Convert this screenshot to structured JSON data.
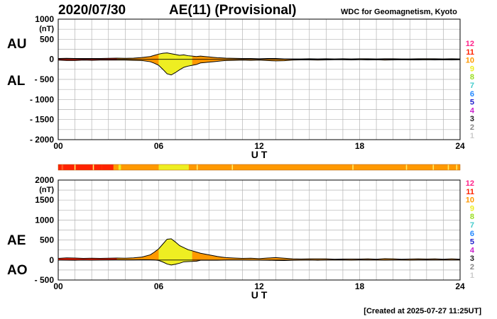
{
  "header": {
    "date": "2020/07/30",
    "title": "AE(11) (Provisional)",
    "source": "WDC for Geomagnetism, Kyoto"
  },
  "footer": {
    "created": "[Created at 2025-07-27 11:25UT]"
  },
  "scale_labels": [
    "12",
    "11",
    "10",
    "9",
    "8",
    "7",
    "6",
    "5",
    "4",
    "3",
    "2",
    "1"
  ],
  "scale_colors": [
    "#ff2288",
    "#ff2200",
    "#ff9900",
    "#eeee22",
    "#99dd22",
    "#44cccc",
    "#2288ff",
    "#2222cc",
    "#cc22cc",
    "#222222",
    "#888888",
    "#cccccc"
  ],
  "color_bar": {
    "segments": [
      {
        "from": 0.0,
        "to": 0.2,
        "color": "#ff2200"
      },
      {
        "from": 0.2,
        "to": 0.3,
        "color": "#ff5522"
      },
      {
        "from": 0.3,
        "to": 2.6,
        "color": "#ff2200"
      },
      {
        "from": 2.6,
        "to": 3.3,
        "color": "#ff2200"
      },
      {
        "from": 3.3,
        "to": 3.6,
        "color": "#ff9900"
      },
      {
        "from": 3.6,
        "to": 3.75,
        "color": "#eeee22"
      },
      {
        "from": 3.75,
        "to": 6.0,
        "color": "#ff9900"
      },
      {
        "from": 6.0,
        "to": 7.8,
        "color": "#eeee22"
      },
      {
        "from": 7.8,
        "to": 24.0,
        "color": "#ff9900"
      }
    ],
    "ticks": [
      1.0,
      2.1,
      8.3,
      10.4,
      17.6,
      20.8,
      22.4,
      23.3,
      23.8
    ]
  },
  "chart_data": [
    {
      "type": "area",
      "panel": "upper",
      "xlabel": "U T",
      "ylabel_unit": "(nT)",
      "side_labels": [
        "AU",
        "AL"
      ],
      "xlim": [
        0,
        24
      ],
      "ylim": [
        -2000,
        1000
      ],
      "x_ticks": [
        "00",
        "06",
        "12",
        "18",
        "24"
      ],
      "x_tick_values": [
        0,
        6,
        12,
        18,
        24
      ],
      "y_ticks": [
        "1000",
        "500",
        "0",
        "- 500",
        "- 1000",
        "- 1500",
        "- 2000"
      ],
      "y_tick_values": [
        1000,
        500,
        0,
        -500,
        -1000,
        -1500,
        -2000
      ],
      "grid": true,
      "x": [
        0,
        0.5,
        1,
        1.5,
        2,
        2.5,
        3,
        3.5,
        4,
        4.5,
        5,
        5.5,
        5.75,
        6,
        6.25,
        6.5,
        6.75,
        7,
        7.25,
        7.5,
        7.75,
        8,
        8.25,
        8.5,
        8.75,
        9,
        9.25,
        9.5,
        9.75,
        10,
        10.5,
        11,
        11.5,
        12,
        12.5,
        13,
        13.5,
        14,
        14.5,
        15,
        15.5,
        16,
        16.5,
        17,
        17.5,
        18,
        18.5,
        19,
        19.5,
        20,
        20.5,
        21,
        21.5,
        22,
        22.5,
        23,
        23.5,
        24
      ],
      "series": [
        {
          "name": "AU",
          "values": [
            20,
            25,
            20,
            20,
            20,
            20,
            25,
            30,
            25,
            30,
            45,
            70,
            100,
            130,
            150,
            160,
            140,
            120,
            100,
            110,
            90,
            80,
            70,
            80,
            70,
            60,
            50,
            40,
            35,
            30,
            25,
            20,
            20,
            15,
            20,
            20,
            10,
            10,
            10,
            15,
            10,
            15,
            10,
            15,
            10,
            15,
            15,
            10,
            15,
            15,
            10,
            10,
            15,
            15,
            15,
            10,
            15,
            10
          ]
        },
        {
          "name": "AL",
          "values": [
            -20,
            -30,
            -30,
            -20,
            -25,
            -20,
            -20,
            -20,
            -20,
            -25,
            -30,
            -60,
            -100,
            -150,
            -250,
            -360,
            -390,
            -330,
            -260,
            -200,
            -170,
            -150,
            -130,
            -90,
            -80,
            -70,
            -60,
            -50,
            -40,
            -30,
            -25,
            -20,
            -25,
            -20,
            -30,
            -40,
            -35,
            -20,
            -15,
            -15,
            -20,
            -15,
            -10,
            -10,
            -15,
            -10,
            -15,
            -10,
            -20,
            -15,
            -10,
            -15,
            -15,
            -10,
            -15,
            -10,
            -15,
            -10
          ]
        }
      ]
    },
    {
      "type": "area",
      "panel": "lower",
      "xlabel": "U T",
      "ylabel_unit": "(nT)",
      "side_labels": [
        "AE",
        "AO"
      ],
      "xlim": [
        0,
        24
      ],
      "ylim": [
        -500,
        2000
      ],
      "x_ticks": [
        "00",
        "06",
        "12",
        "18",
        "24"
      ],
      "x_tick_values": [
        0,
        6,
        12,
        18,
        24
      ],
      "y_ticks": [
        "2000",
        "1500",
        "1000",
        "500",
        "0",
        "- 500"
      ],
      "y_tick_values": [
        2000,
        1500,
        1000,
        500,
        0,
        -500
      ],
      "grid": true,
      "x": [
        0,
        0.5,
        1,
        1.5,
        2,
        2.5,
        3,
        3.5,
        4,
        4.5,
        5,
        5.5,
        5.75,
        6,
        6.25,
        6.5,
        6.75,
        7,
        7.25,
        7.5,
        7.75,
        8,
        8.25,
        8.5,
        8.75,
        9,
        9.25,
        9.5,
        9.75,
        10,
        10.5,
        11,
        11.5,
        12,
        12.5,
        13,
        13.5,
        14,
        14.5,
        15,
        15.5,
        16,
        16.5,
        17,
        17.5,
        18,
        18.5,
        19,
        19.5,
        20,
        20.5,
        21,
        21.5,
        22,
        22.5,
        23,
        23.5,
        24
      ],
      "series": [
        {
          "name": "AE",
          "values": [
            40,
            55,
            50,
            40,
            45,
            40,
            45,
            50,
            45,
            55,
            75,
            130,
            200,
            280,
            400,
            520,
            530,
            450,
            360,
            310,
            260,
            230,
            200,
            170,
            150,
            130,
            110,
            90,
            75,
            60,
            50,
            40,
            45,
            35,
            50,
            60,
            45,
            30,
            25,
            30,
            30,
            30,
            20,
            25,
            25,
            25,
            30,
            20,
            35,
            30,
            20,
            25,
            30,
            25,
            30,
            20,
            30,
            20
          ]
        },
        {
          "name": "AO",
          "values": [
            0,
            -3,
            -5,
            0,
            -3,
            0,
            3,
            5,
            3,
            3,
            8,
            5,
            0,
            -10,
            -50,
            -100,
            -125,
            -105,
            -80,
            -45,
            -40,
            -35,
            -30,
            -5,
            -5,
            -5,
            -5,
            -5,
            -3,
            0,
            0,
            0,
            -3,
            -3,
            -5,
            -10,
            -13,
            -5,
            -3,
            0,
            -5,
            0,
            0,
            3,
            -3,
            3,
            0,
            0,
            -3,
            0,
            0,
            -3,
            0,
            3,
            0,
            0,
            0,
            0
          ]
        }
      ]
    }
  ]
}
